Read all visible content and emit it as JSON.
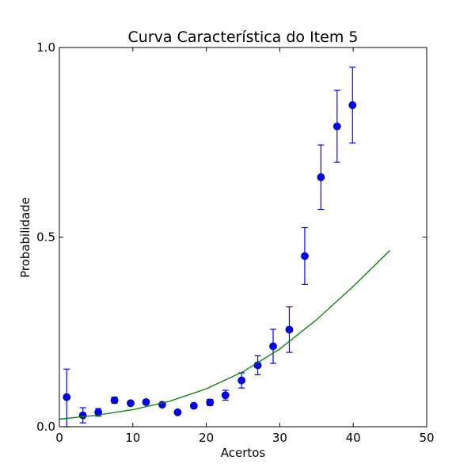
{
  "chart_data": {
    "type": "scatter",
    "title": "Curva Característica do Item 5",
    "xlabel": "Acertos",
    "ylabel": "Probabilidade",
    "xlim": [
      0,
      50
    ],
    "ylim": [
      0,
      1
    ],
    "x_ticks": [
      0,
      10,
      20,
      30,
      40,
      50
    ],
    "x_tick_labels": [
      "0",
      "10",
      "20",
      "30",
      "40",
      "50"
    ],
    "y_ticks": [
      0,
      0.5,
      1
    ],
    "y_tick_labels": [
      "0.0",
      "0.5",
      "1.0"
    ],
    "grid": false,
    "legend": "none",
    "series": [
      {
        "kind": "scatter_errorbar",
        "color": "#0000ff",
        "edge_color": "#000080",
        "x": [
          1.0,
          3.2,
          5.3,
          7.5,
          9.7,
          11.8,
          14.0,
          16.1,
          18.3,
          20.5,
          22.6,
          24.8,
          27.0,
          29.1,
          31.3,
          33.4,
          35.6,
          37.8,
          39.9
        ],
        "y": [
          0.078,
          0.03,
          0.038,
          0.07,
          0.062,
          0.065,
          0.058,
          0.038,
          0.055,
          0.064,
          0.083,
          0.122,
          0.162,
          0.212,
          0.256,
          0.45,
          0.658,
          0.792,
          0.848
        ],
        "err_low": [
          0.078,
          0.02,
          0.01,
          0.008,
          0.005,
          0.004,
          0.004,
          0.003,
          0.005,
          0.008,
          0.013,
          0.02,
          0.025,
          0.045,
          0.06,
          0.075,
          0.085,
          0.095,
          0.1
        ],
        "err_high": [
          0.074,
          0.02,
          0.01,
          0.008,
          0.005,
          0.004,
          0.004,
          0.003,
          0.005,
          0.008,
          0.013,
          0.02,
          0.025,
          0.045,
          0.06,
          0.075,
          0.085,
          0.095,
          0.1
        ]
      },
      {
        "kind": "line",
        "color": "#008000",
        "x": [
          0,
          5,
          10,
          15,
          20,
          25,
          30,
          35,
          40,
          45
        ],
        "y": [
          0.02,
          0.03,
          0.045,
          0.067,
          0.1,
          0.145,
          0.205,
          0.282,
          0.37,
          0.465
        ]
      }
    ]
  }
}
